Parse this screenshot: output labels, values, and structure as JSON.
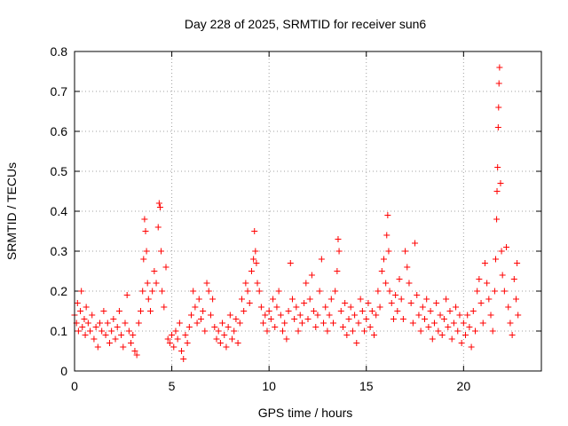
{
  "chart_data": {
    "type": "scatter",
    "title": "Day 228 of 2025, SRMTID for receiver sun6",
    "xlabel": "GPS time / hours",
    "ylabel": "SRMTID / TECUs",
    "xlim": [
      0,
      24
    ],
    "ylim": [
      0,
      0.8
    ],
    "xticks": [
      0,
      5,
      10,
      15,
      20
    ],
    "yticks": [
      0,
      0.1,
      0.2,
      0.3,
      0.4,
      0.5,
      0.6,
      0.7,
      0.8
    ],
    "xtick_labels": [
      "0",
      "5",
      "10",
      "15",
      "20"
    ],
    "ytick_labels": [
      "0",
      "0.1",
      "0.2",
      "0.3",
      "0.4",
      "0.5",
      "0.6",
      "0.7",
      "0.8"
    ],
    "grid": true,
    "marker": "plus",
    "color": "#ff0000",
    "series": [
      {
        "name": "SRMTID",
        "points": [
          [
            0.0,
            0.14
          ],
          [
            0.1,
            0.12
          ],
          [
            0.15,
            0.17
          ],
          [
            0.2,
            0.1
          ],
          [
            0.3,
            0.15
          ],
          [
            0.35,
            0.2
          ],
          [
            0.4,
            0.11
          ],
          [
            0.5,
            0.13
          ],
          [
            0.55,
            0.09
          ],
          [
            0.6,
            0.16
          ],
          [
            0.7,
            0.12
          ],
          [
            0.8,
            0.1
          ],
          [
            0.9,
            0.14
          ],
          [
            1.0,
            0.08
          ],
          [
            1.1,
            0.11
          ],
          [
            1.2,
            0.06
          ],
          [
            1.3,
            0.12
          ],
          [
            1.4,
            0.1
          ],
          [
            1.5,
            0.15
          ],
          [
            1.6,
            0.09
          ],
          [
            1.7,
            0.12
          ],
          [
            1.8,
            0.07
          ],
          [
            1.9,
            0.1
          ],
          [
            2.0,
            0.13
          ],
          [
            2.1,
            0.08
          ],
          [
            2.2,
            0.11
          ],
          [
            2.3,
            0.15
          ],
          [
            2.4,
            0.09
          ],
          [
            2.5,
            0.06
          ],
          [
            2.6,
            0.12
          ],
          [
            2.7,
            0.19
          ],
          [
            2.8,
            0.1
          ],
          [
            2.9,
            0.07
          ],
          [
            3.0,
            0.09
          ],
          [
            3.1,
            0.05
          ],
          [
            3.2,
            0.04
          ],
          [
            3.3,
            0.12
          ],
          [
            3.4,
            0.15
          ],
          [
            3.5,
            0.2
          ],
          [
            3.55,
            0.28
          ],
          [
            3.6,
            0.38
          ],
          [
            3.65,
            0.35
          ],
          [
            3.7,
            0.3
          ],
          [
            3.75,
            0.22
          ],
          [
            3.8,
            0.18
          ],
          [
            3.9,
            0.15
          ],
          [
            4.0,
            0.2
          ],
          [
            4.1,
            0.25
          ],
          [
            4.2,
            0.22
          ],
          [
            4.3,
            0.36
          ],
          [
            4.35,
            0.42
          ],
          [
            4.4,
            0.41
          ],
          [
            4.45,
            0.3
          ],
          [
            4.5,
            0.2
          ],
          [
            4.6,
            0.16
          ],
          [
            4.7,
            0.26
          ],
          [
            4.8,
            0.08
          ],
          [
            4.9,
            0.07
          ],
          [
            5.0,
            0.09
          ],
          [
            5.1,
            0.06
          ],
          [
            5.2,
            0.1
          ],
          [
            5.3,
            0.08
          ],
          [
            5.4,
            0.12
          ],
          [
            5.5,
            0.05
          ],
          [
            5.6,
            0.03
          ],
          [
            5.7,
            0.09
          ],
          [
            5.8,
            0.07
          ],
          [
            5.9,
            0.11
          ],
          [
            6.0,
            0.14
          ],
          [
            6.1,
            0.2
          ],
          [
            6.2,
            0.16
          ],
          [
            6.3,
            0.12
          ],
          [
            6.4,
            0.18
          ],
          [
            6.5,
            0.13
          ],
          [
            6.6,
            0.15
          ],
          [
            6.7,
            0.1
          ],
          [
            6.8,
            0.22
          ],
          [
            6.9,
            0.2
          ],
          [
            7.0,
            0.14
          ],
          [
            7.1,
            0.18
          ],
          [
            7.2,
            0.11
          ],
          [
            7.3,
            0.08
          ],
          [
            7.4,
            0.1
          ],
          [
            7.5,
            0.07
          ],
          [
            7.6,
            0.12
          ],
          [
            7.7,
            0.09
          ],
          [
            7.8,
            0.06
          ],
          [
            7.9,
            0.11
          ],
          [
            8.0,
            0.14
          ],
          [
            8.1,
            0.08
          ],
          [
            8.2,
            0.1
          ],
          [
            8.3,
            0.13
          ],
          [
            8.4,
            0.07
          ],
          [
            8.5,
            0.12
          ],
          [
            8.6,
            0.18
          ],
          [
            8.7,
            0.15
          ],
          [
            8.8,
            0.22
          ],
          [
            8.9,
            0.2
          ],
          [
            9.0,
            0.17
          ],
          [
            9.1,
            0.25
          ],
          [
            9.2,
            0.28
          ],
          [
            9.25,
            0.35
          ],
          [
            9.3,
            0.3
          ],
          [
            9.35,
            0.27
          ],
          [
            9.4,
            0.22
          ],
          [
            9.5,
            0.2
          ],
          [
            9.6,
            0.16
          ],
          [
            9.7,
            0.12
          ],
          [
            9.8,
            0.14
          ],
          [
            9.9,
            0.1
          ],
          [
            10.0,
            0.15
          ],
          [
            10.1,
            0.13
          ],
          [
            10.2,
            0.18
          ],
          [
            10.3,
            0.11
          ],
          [
            10.4,
            0.16
          ],
          [
            10.5,
            0.2
          ],
          [
            10.6,
            0.14
          ],
          [
            10.7,
            0.1
          ],
          [
            10.8,
            0.12
          ],
          [
            10.9,
            0.08
          ],
          [
            11.0,
            0.15
          ],
          [
            11.1,
            0.27
          ],
          [
            11.2,
            0.18
          ],
          [
            11.3,
            0.13
          ],
          [
            11.4,
            0.16
          ],
          [
            11.5,
            0.1
          ],
          [
            11.6,
            0.14
          ],
          [
            11.7,
            0.12
          ],
          [
            11.8,
            0.17
          ],
          [
            11.9,
            0.22
          ],
          [
            12.0,
            0.13
          ],
          [
            12.1,
            0.18
          ],
          [
            12.2,
            0.24
          ],
          [
            12.3,
            0.15
          ],
          [
            12.4,
            0.11
          ],
          [
            12.5,
            0.14
          ],
          [
            12.6,
            0.2
          ],
          [
            12.7,
            0.28
          ],
          [
            12.8,
            0.12
          ],
          [
            12.9,
            0.16
          ],
          [
            13.0,
            0.1
          ],
          [
            13.1,
            0.14
          ],
          [
            13.2,
            0.18
          ],
          [
            13.3,
            0.12
          ],
          [
            13.4,
            0.2
          ],
          [
            13.5,
            0.25
          ],
          [
            13.55,
            0.33
          ],
          [
            13.6,
            0.3
          ],
          [
            13.7,
            0.15
          ],
          [
            13.8,
            0.11
          ],
          [
            13.9,
            0.17
          ],
          [
            14.0,
            0.09
          ],
          [
            14.1,
            0.13
          ],
          [
            14.2,
            0.16
          ],
          [
            14.3,
            0.1
          ],
          [
            14.4,
            0.14
          ],
          [
            14.5,
            0.07
          ],
          [
            14.6,
            0.12
          ],
          [
            14.7,
            0.18
          ],
          [
            14.8,
            0.15
          ],
          [
            14.9,
            0.1
          ],
          [
            15.0,
            0.13
          ],
          [
            15.1,
            0.17
          ],
          [
            15.2,
            0.11
          ],
          [
            15.3,
            0.15
          ],
          [
            15.4,
            0.09
          ],
          [
            15.5,
            0.14
          ],
          [
            15.6,
            0.2
          ],
          [
            15.7,
            0.16
          ],
          [
            15.8,
            0.25
          ],
          [
            15.9,
            0.28
          ],
          [
            16.0,
            0.22
          ],
          [
            16.05,
            0.34
          ],
          [
            16.1,
            0.39
          ],
          [
            16.15,
            0.3
          ],
          [
            16.2,
            0.2
          ],
          [
            16.3,
            0.17
          ],
          [
            16.4,
            0.13
          ],
          [
            16.5,
            0.19
          ],
          [
            16.6,
            0.15
          ],
          [
            16.7,
            0.23
          ],
          [
            16.8,
            0.18
          ],
          [
            16.9,
            0.13
          ],
          [
            17.0,
            0.3
          ],
          [
            17.1,
            0.26
          ],
          [
            17.2,
            0.22
          ],
          [
            17.3,
            0.17
          ],
          [
            17.4,
            0.12
          ],
          [
            17.5,
            0.32
          ],
          [
            17.6,
            0.19
          ],
          [
            17.7,
            0.14
          ],
          [
            17.8,
            0.1
          ],
          [
            17.9,
            0.16
          ],
          [
            18.0,
            0.13
          ],
          [
            18.1,
            0.18
          ],
          [
            18.2,
            0.11
          ],
          [
            18.3,
            0.15
          ],
          [
            18.4,
            0.08
          ],
          [
            18.5,
            0.12
          ],
          [
            18.6,
            0.17
          ],
          [
            18.7,
            0.1
          ],
          [
            18.8,
            0.14
          ],
          [
            18.9,
            0.09
          ],
          [
            19.0,
            0.13
          ],
          [
            19.1,
            0.18
          ],
          [
            19.2,
            0.11
          ],
          [
            19.3,
            0.15
          ],
          [
            19.4,
            0.08
          ],
          [
            19.5,
            0.12
          ],
          [
            19.6,
            0.16
          ],
          [
            19.7,
            0.1
          ],
          [
            19.8,
            0.14
          ],
          [
            19.9,
            0.07
          ],
          [
            20.0,
            0.12
          ],
          [
            20.1,
            0.09
          ],
          [
            20.2,
            0.14
          ],
          [
            20.3,
            0.11
          ],
          [
            20.4,
            0.06
          ],
          [
            20.5,
            0.15
          ],
          [
            20.6,
            0.1
          ],
          [
            20.7,
            0.2
          ],
          [
            20.8,
            0.23
          ],
          [
            20.9,
            0.17
          ],
          [
            21.0,
            0.12
          ],
          [
            21.1,
            0.27
          ],
          [
            21.2,
            0.22
          ],
          [
            21.3,
            0.18
          ],
          [
            21.4,
            0.14
          ],
          [
            21.5,
            0.1
          ],
          [
            21.6,
            0.2
          ],
          [
            21.65,
            0.28
          ],
          [
            21.7,
            0.38
          ],
          [
            21.72,
            0.45
          ],
          [
            21.75,
            0.51
          ],
          [
            21.78,
            0.61
          ],
          [
            21.8,
            0.66
          ],
          [
            21.82,
            0.72
          ],
          [
            21.85,
            0.76
          ],
          [
            21.9,
            0.47
          ],
          [
            21.95,
            0.3
          ],
          [
            22.0,
            0.24
          ],
          [
            22.1,
            0.2
          ],
          [
            22.2,
            0.31
          ],
          [
            22.3,
            0.16
          ],
          [
            22.4,
            0.12
          ],
          [
            22.5,
            0.09
          ],
          [
            22.6,
            0.23
          ],
          [
            22.7,
            0.18
          ],
          [
            22.75,
            0.27
          ],
          [
            22.8,
            0.14
          ]
        ]
      }
    ]
  }
}
